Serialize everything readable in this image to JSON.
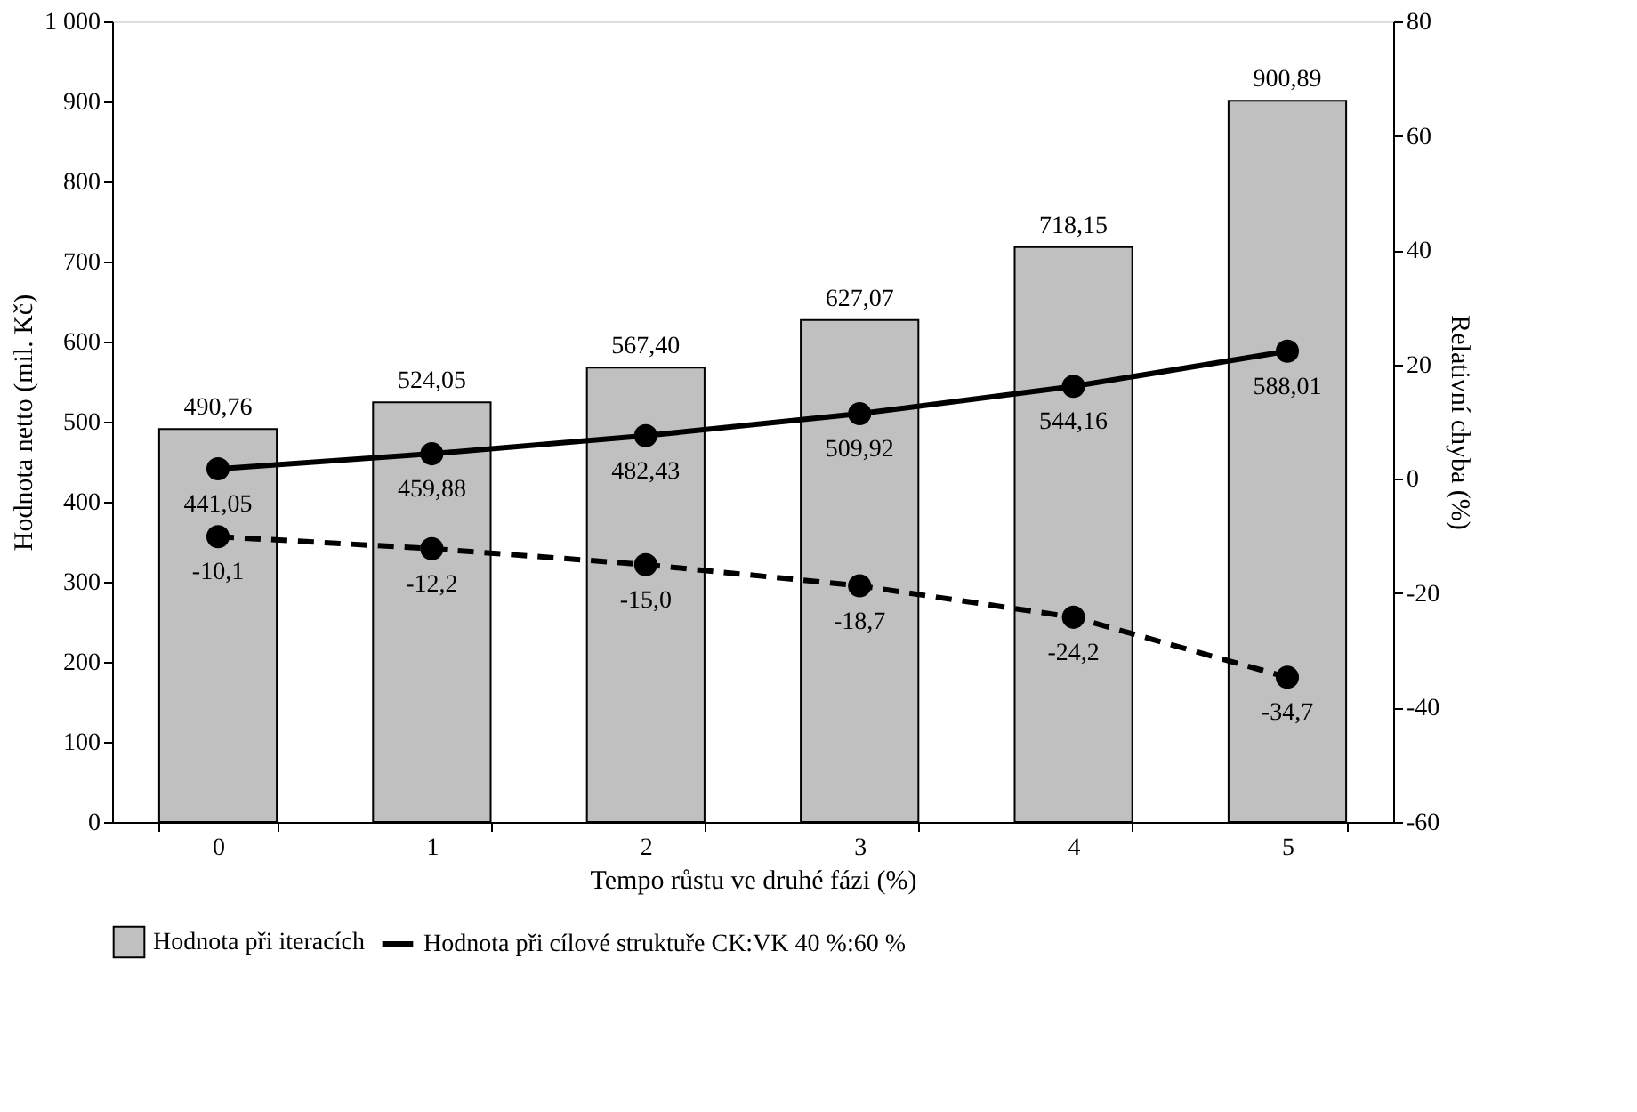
{
  "chart_data": {
    "type": "bar",
    "xlabel": "Tempo růstu ve druhé fázi  (%)",
    "ylabel": "Hodnota netto  (mil. Kč)",
    "y2label": "Relativní chyba  (%)",
    "categories": [
      "0",
      "1",
      "2",
      "3",
      "4",
      "5"
    ],
    "series": [
      {
        "name": "Hodnota při iteracích",
        "color": "#c0c0c0",
        "values": [
          490.76,
          524.05,
          567.4,
          627.07,
          718.15,
          900.89
        ],
        "value_labels": [
          "490,76",
          "524,05",
          "567,40",
          "627,07",
          "718,15",
          "900,89"
        ]
      },
      {
        "name": "Hodnota při cílové struktuře CK:VK 40 %:60 %",
        "type": "line",
        "color": "#000000",
        "line_style": "solid",
        "marker": "circle",
        "values": [
          441.05,
          459.88,
          482.43,
          509.92,
          544.16,
          588.01
        ],
        "value_labels": [
          "441,05",
          "459,88",
          "482,43",
          "509,92",
          "544,16",
          "588,01"
        ]
      },
      {
        "type": "line",
        "axis": "y2",
        "color": "#000000",
        "line_style": "dashed",
        "marker": "circle",
        "values": [
          -10.1,
          -12.2,
          -15.0,
          -18.7,
          -24.2,
          -34.7
        ],
        "value_labels": [
          "-10,1",
          "-12,2",
          "-15,0",
          "-18,7",
          "-24,2",
          "-34,7"
        ]
      }
    ],
    "ylim": [
      0,
      1000
    ],
    "yticks": [
      0,
      100,
      200,
      300,
      400,
      500,
      600,
      700,
      800,
      900,
      {
        "value": 1000,
        "label": "1 000"
      }
    ],
    "y2lim": [
      -60,
      80
    ],
    "y2ticks": [
      -60,
      -40,
      -20,
      0,
      20,
      40,
      60,
      80
    ],
    "grid": false,
    "legend": "bottom"
  }
}
